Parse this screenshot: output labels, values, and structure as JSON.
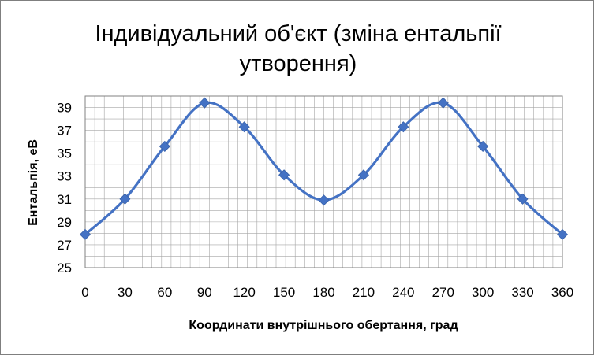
{
  "chart_data": {
    "type": "line",
    "title_line1": "Індивідуальний об'єкт (зміна ентальпії",
    "title_line2": "утворення)",
    "xlabel": "Координати внутрішнього обертання, град",
    "ylabel": "Ентальпія, еВ",
    "x": [
      0,
      30,
      60,
      90,
      120,
      150,
      180,
      210,
      240,
      270,
      300,
      330,
      360
    ],
    "series": [
      {
        "values": [
          27.9,
          31.0,
          35.6,
          39.4,
          37.3,
          33.1,
          30.9,
          33.1,
          37.3,
          39.4,
          35.6,
          31.0,
          27.9
        ]
      }
    ],
    "xlim": [
      0,
      360
    ],
    "ylim": [
      25,
      40
    ],
    "x_ticks": [
      "0",
      "30",
      "60",
      "90",
      "120",
      "150",
      "180",
      "210",
      "240",
      "270",
      "300",
      "330",
      "360"
    ],
    "y_ticks": [
      "25",
      "27",
      "29",
      "31",
      "33",
      "35",
      "37",
      "39"
    ],
    "grid": true,
    "marker": "diamond",
    "smooth": true,
    "colors": {
      "line": "#4472C4",
      "marker": "#4472C4",
      "grid": "#a6a6a6",
      "border": "#7f7f7f"
    }
  }
}
